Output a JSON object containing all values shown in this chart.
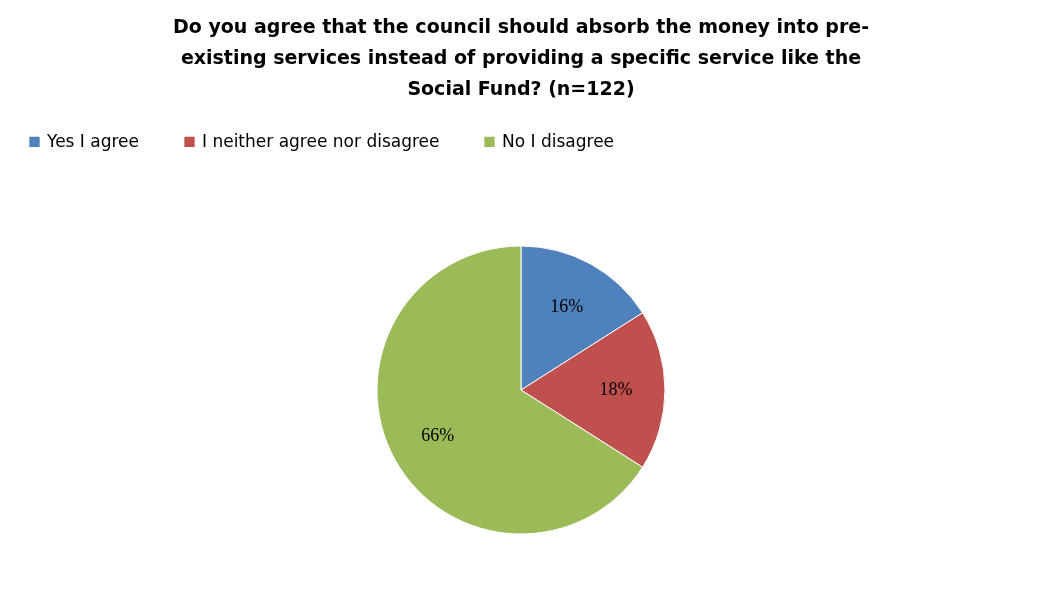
{
  "chart_data": {
    "type": "pie",
    "title": [
      "Do you agree that the council should absorb the money into pre-",
      "existing services instead of providing a specific service like the",
      "Social Fund? (n=122)"
    ],
    "categories": [
      "Yes I agree",
      "I neither agree nor disagree",
      "No I disagree"
    ],
    "values": [
      16,
      18,
      66
    ],
    "colors": [
      "#4f81bd",
      "#c0504d",
      "#9bbb59"
    ],
    "value_labels": [
      "16%",
      "18%",
      "66%"
    ],
    "legend": "top"
  }
}
